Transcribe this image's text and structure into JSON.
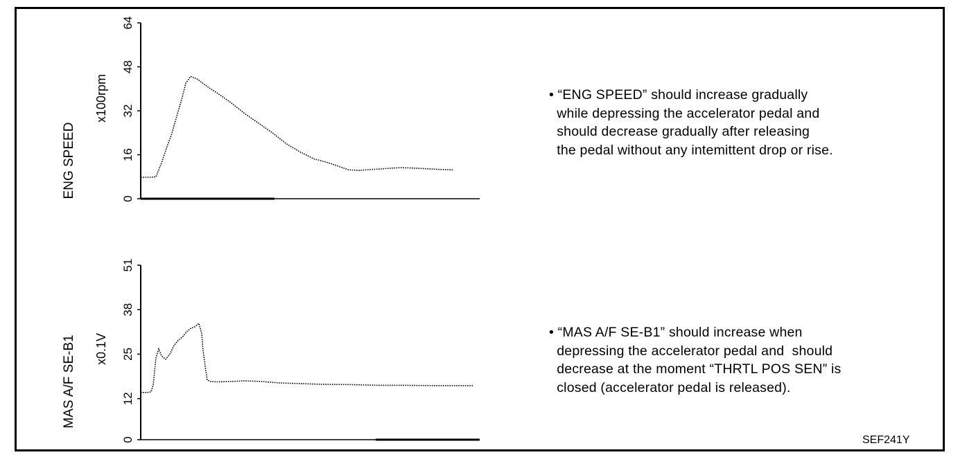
{
  "figure_code": "SEF241Y",
  "notes": [
    "• “ENG SPEED” should increase gradually\n  while depressing the accelerator pedal and\n  should decrease gradually after releasing\n  the pedal without any intemittent drop or rise.",
    "• “MAS A/F SE-B1” should increase when\n  depressing the accelerator pedal and  should\n  decrease at the moment “THRTL POS SEN” is\n  closed (accelerator pedal is released)."
  ],
  "chart_data": [
    {
      "type": "line",
      "title": "",
      "ylabel": "ENG SPEED",
      "yunit": "x100rpm",
      "xlabel": "",
      "ylim": [
        0,
        64
      ],
      "yticks": [
        "0",
        "16",
        "32",
        "48",
        "64"
      ],
      "grid": false,
      "line_style": "dotted",
      "series": [
        {
          "x": [
            0,
            6,
            14,
            22,
            30,
            38,
            44,
            52,
            60,
            65,
            72,
            82,
            95,
            110,
            130,
            150,
            170,
            190,
            210,
            230,
            250,
            265,
            280,
            300,
            315,
            330,
            345,
            360,
            375,
            390,
            405,
            420,
            435,
            450
          ],
          "values": [
            7.8,
            7.8,
            7.8,
            8.0,
            13,
            19,
            23,
            30,
            37,
            42,
            44.5,
            43.5,
            41,
            38.5,
            35,
            31,
            27.5,
            24,
            20,
            17,
            14.5,
            13.5,
            12.3,
            10.5,
            10.3,
            10.6,
            10.8,
            11.1,
            11.3,
            11.2,
            11.0,
            10.8,
            10.6,
            10.5
          ]
        }
      ]
    },
    {
      "type": "line",
      "title": "",
      "ylabel": "MAS A/F SE-B1",
      "yunit": "x0.1V",
      "xlabel": "",
      "ylim": [
        0,
        51
      ],
      "yticks": [
        "0",
        "12",
        "25",
        "38",
        "51"
      ],
      "grid": false,
      "line_style": "dotted",
      "series": [
        {
          "x": [
            0,
            10,
            15,
            18,
            22,
            26,
            30,
            36,
            42,
            48,
            54,
            60,
            66,
            72,
            78,
            84,
            88,
            90,
            94,
            96,
            100,
            110,
            130,
            150,
            175,
            200,
            230,
            260,
            300,
            340,
            380,
            420,
            450,
            480
          ],
          "values": [
            13.8,
            13.8,
            14.0,
            16,
            24,
            26.5,
            24.5,
            23.5,
            25,
            27.5,
            29,
            30,
            31.5,
            32.5,
            33,
            34,
            31,
            26,
            20,
            17.5,
            17,
            16.9,
            17,
            17.2,
            17,
            16.6,
            16.4,
            16.2,
            16.1,
            15.9,
            15.9,
            15.8,
            15.8,
            15.8
          ]
        }
      ]
    }
  ]
}
